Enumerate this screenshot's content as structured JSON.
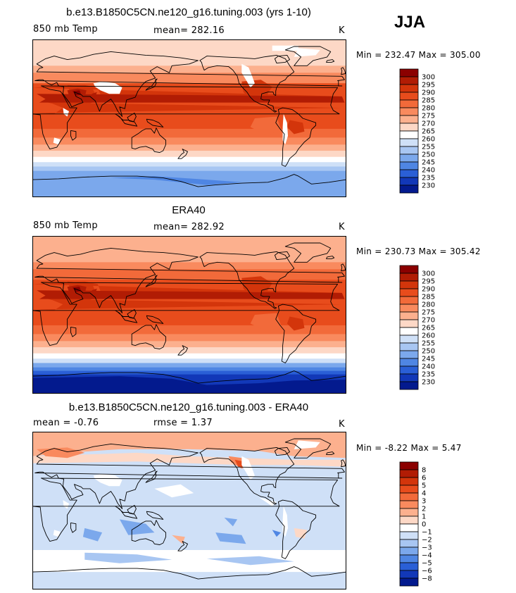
{
  "season": "JJA",
  "panels": [
    {
      "title": "b.e13.B1850C5CN.ne120_g16.tuning.003 (yrs 1-10)",
      "variable": "850 mb Temp",
      "stat_text": "mean= 282.16",
      "units": "K",
      "minmax": "Min = 232.47 Max = 305.00",
      "colorbar": {
        "levels": [
          "300",
          "295",
          "290",
          "285",
          "280",
          "275",
          "270",
          "265",
          "260",
          "255",
          "250",
          "245",
          "240",
          "235",
          "230"
        ],
        "colors": [
          "#8b0000",
          "#b11c04",
          "#d3350b",
          "#e84c1c",
          "#f26a3a",
          "#f98a5e",
          "#fcb08e",
          "#fdd8c6",
          "#ffffff",
          "#cfe0f7",
          "#a8c6f2",
          "#7ba8ec",
          "#4f86e3",
          "#2a5fd6",
          "#1238b8",
          "#031a8e"
        ]
      },
      "map_style": "model"
    },
    {
      "title": "ERA40",
      "variable": "850 mb Temp",
      "stat_text": "mean= 282.92",
      "units": "K",
      "minmax": "Min = 230.73 Max = 305.42",
      "colorbar": {
        "levels": [
          "300",
          "295",
          "290",
          "285",
          "280",
          "275",
          "270",
          "265",
          "260",
          "255",
          "250",
          "245",
          "240",
          "235",
          "230"
        ],
        "colors": [
          "#8b0000",
          "#b11c04",
          "#d3350b",
          "#e84c1c",
          "#f26a3a",
          "#f98a5e",
          "#fcb08e",
          "#fdd8c6",
          "#ffffff",
          "#cfe0f7",
          "#a8c6f2",
          "#7ba8ec",
          "#4f86e3",
          "#2a5fd6",
          "#1238b8",
          "#031a8e"
        ]
      },
      "map_style": "obs"
    },
    {
      "title": "b.e13.B1850C5CN.ne120_g16.tuning.003 - ERA40",
      "variable": "mean =   -0.76",
      "stat_text": "rmse =    1.37",
      "units": "K",
      "minmax": "Min =  -8.22 Max =   5.47",
      "colorbar": {
        "levels": [
          "8",
          "6",
          "5",
          "4",
          "3",
          "2",
          "1",
          "0",
          "−1",
          "−2",
          "−3",
          "−4",
          "−5",
          "−6",
          "−8"
        ],
        "colors": [
          "#8b0000",
          "#b11c04",
          "#d3350b",
          "#e84c1c",
          "#f26a3a",
          "#f98a5e",
          "#fcb08e",
          "#fdd8c6",
          "#ffffff",
          "#cfe0f7",
          "#a8c6f2",
          "#7ba8ec",
          "#4f86e3",
          "#2a5fd6",
          "#1238b8",
          "#031a8e"
        ]
      },
      "map_style": "diff"
    }
  ],
  "chart_data": [
    {
      "type": "heatmap",
      "title": "b.e13.B1850C5CN.ne120_g16.tuning.003 (yrs 1-10)",
      "variable": "850 mb Temp",
      "units": "K",
      "mean": 282.16,
      "min": 232.47,
      "max": 305.0,
      "season": "JJA",
      "contour_levels": [
        230,
        235,
        240,
        245,
        250,
        255,
        260,
        265,
        270,
        275,
        280,
        285,
        290,
        295,
        300
      ]
    },
    {
      "type": "heatmap",
      "title": "ERA40",
      "variable": "850 mb Temp",
      "units": "K",
      "mean": 282.92,
      "min": 230.73,
      "max": 305.42,
      "season": "JJA",
      "contour_levels": [
        230,
        235,
        240,
        245,
        250,
        255,
        260,
        265,
        270,
        275,
        280,
        285,
        290,
        295,
        300
      ]
    },
    {
      "type": "heatmap",
      "title": "b.e13.B1850C5CN.ne120_g16.tuning.003 - ERA40",
      "units": "K",
      "mean": -0.76,
      "rmse": 1.37,
      "min": -8.22,
      "max": 5.47,
      "season": "JJA",
      "contour_levels": [
        -8,
        -6,
        -5,
        -4,
        -3,
        -2,
        -1,
        0,
        1,
        2,
        3,
        4,
        5,
        6,
        8
      ]
    }
  ]
}
